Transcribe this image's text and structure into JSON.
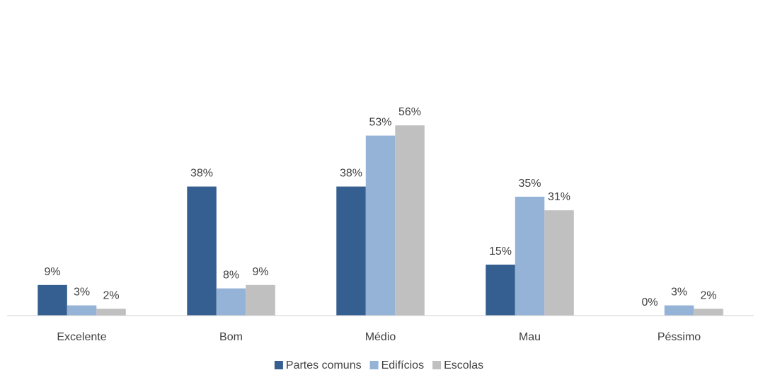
{
  "chart_data": {
    "type": "bar",
    "title": "",
    "xlabel": "",
    "ylabel": "",
    "categories": [
      "Excelente",
      "Bom",
      "Médio",
      "Mau",
      "Péssimo"
    ],
    "series": [
      {
        "name": "Partes comuns",
        "color": "#355E91",
        "values": [
          9,
          38,
          38,
          15,
          0
        ],
        "labels": [
          "9%",
          "38%",
          "38%",
          "15%",
          "0%"
        ]
      },
      {
        "name": "Edifícios",
        "color": "#95B3D7",
        "values": [
          3,
          8,
          53,
          35,
          3
        ],
        "labels": [
          "3%",
          "8%",
          "53%",
          "35%",
          "3%"
        ]
      },
      {
        "name": "Escolas",
        "color": "#C0C0C0",
        "values": [
          2,
          9,
          56,
          31,
          2
        ],
        "labels": [
          "2%",
          "9%",
          "56%",
          "31%",
          "2%"
        ]
      }
    ],
    "ylim": [
      0,
      60
    ],
    "grid": false,
    "legend": "bottom-center"
  }
}
